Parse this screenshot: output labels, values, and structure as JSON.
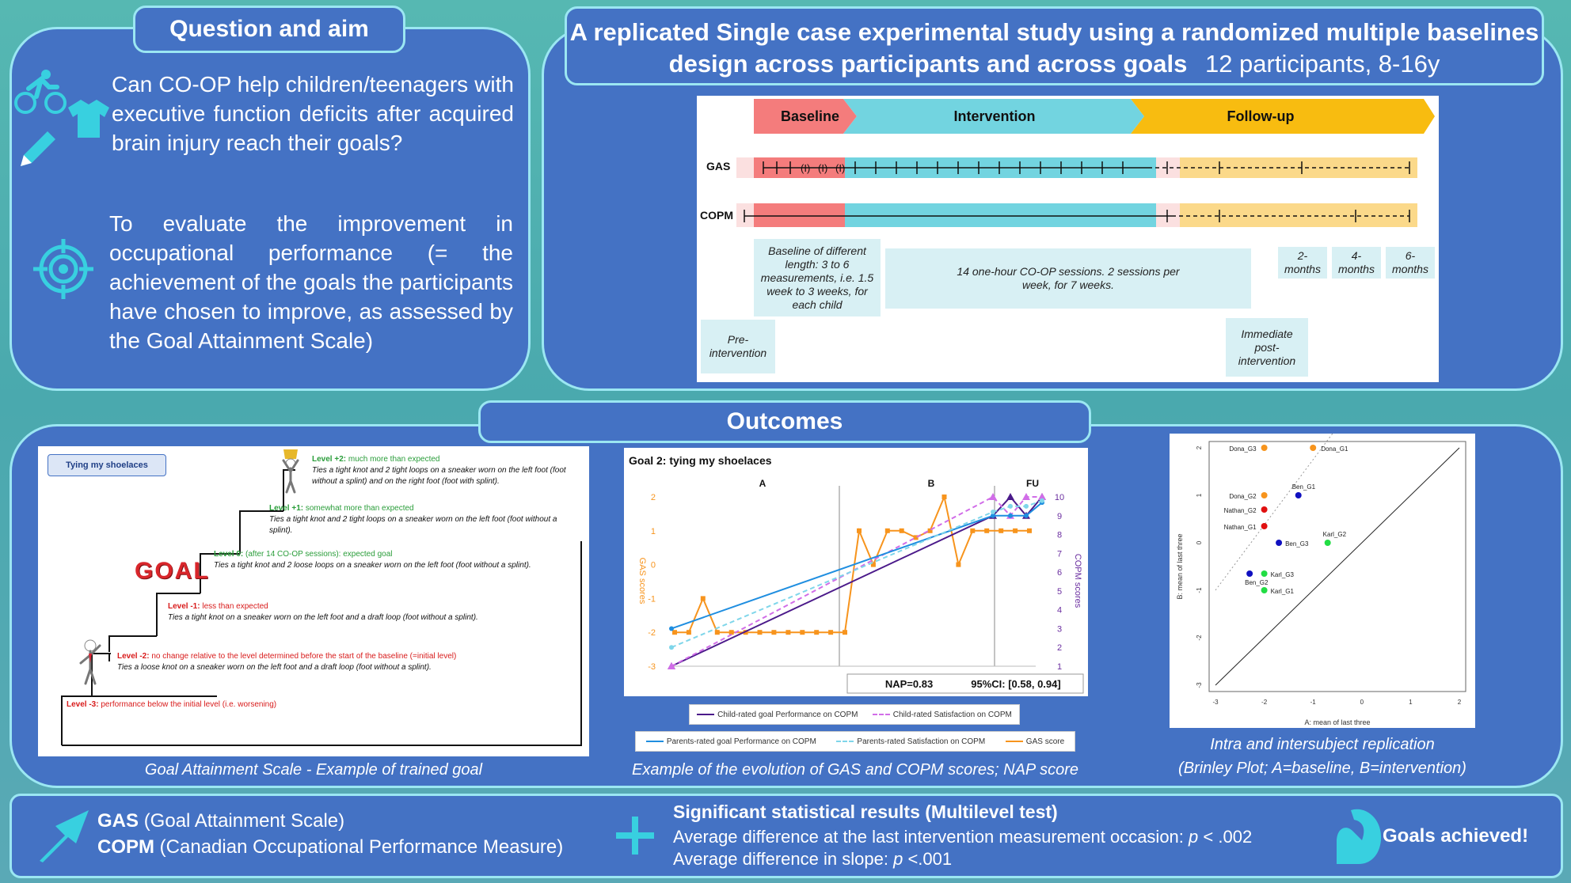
{
  "question_panel": {
    "header": "Question and aim",
    "question": "Can CO-OP help children/teenagers with executive function deficits after acquired brain injury reach their goals?",
    "aim": "To evaluate the improvement in occupational performance (= the achievement of the goals the participants have chosen to improve, as assessed by the Goal Attainment Scale)"
  },
  "study_panel": {
    "title_line1": "A replicated Single case experimental study using a randomized multiple baselines",
    "title_line2_bold": "design across participants and across goals",
    "title_line2_extra": "12 participants, 8-16y",
    "phases": [
      "Baseline",
      "Intervention",
      "Follow-up"
    ],
    "row_labels": [
      "GAS",
      "COPM"
    ],
    "gas_marks": [
      "(I)",
      "(I)",
      "(I)"
    ],
    "notes": {
      "pre": "Pre-intervention",
      "baseline": "Baseline of different length: 3 to 6 measurements, i.e. 1.5 week to 3 weeks, for each child",
      "sessions": "14 one-hour CO-OP sessions. 2 sessions per week, for 7 weeks.",
      "post": "Immediate post-intervention",
      "fu": [
        "2-months",
        "4-months",
        "6-months"
      ]
    }
  },
  "outcomes": {
    "header": "Outcomes",
    "gas_example": {
      "tag": "Tying my shoelaces",
      "goal_word": "GOAL",
      "levels": [
        {
          "level": "Level +2:",
          "head": "much more than expected",
          "body": "Ties a tight knot and 2 tight loops on a sneaker worn on the left foot (foot without a splint) and on the right foot (foot with splint)."
        },
        {
          "level": "Level +1:",
          "head": "somewhat more than expected",
          "body": "Ties a tight knot and 2 tight loops on a sneaker worn on the left foot (foot without a splint)."
        },
        {
          "level": "Level 0:",
          "head": "(after 14 CO-OP sessions): expected goal",
          "body": "Ties a tight knot and 2 loose loops on a sneaker worn on the left foot (foot without a splint)."
        },
        {
          "level": "Level -1:",
          "head": "less than expected",
          "body": "Ties a tight knot on a sneaker worn on the left foot and a draft loop (foot without a splint)."
        },
        {
          "level": "Level -2:",
          "head": "no change relative to the level determined before the start of the baseline (=initial level)",
          "body": "Ties a loose knot on a sneaker worn on the left foot and a draft loop (foot without a splint)."
        },
        {
          "level": "Level -3:",
          "head": "performance below the initial level (i.e. worsening)",
          "body": ""
        }
      ],
      "caption": "Goal Attainment Scale - Example of trained goal"
    },
    "line_caption": "Example of the evolution of GAS and COPM scores; NAP score",
    "brinley_caption_1": "Intra and intersubject replication",
    "brinley_caption_2": "(Brinley Plot; A=baseline, B=intervention)"
  },
  "chart_data": [
    {
      "type": "line",
      "title": "Goal 2: tying my shoelaces",
      "phases": [
        "A",
        "B",
        "FU"
      ],
      "ylabel_left": "GAS scores",
      "ylabel_right": "COPM scores",
      "ylim_left": [
        -3,
        2
      ],
      "ylim_right": [
        1,
        10
      ],
      "yticks_left": [
        "2",
        "1",
        "0",
        "-1",
        "-2",
        "-3"
      ],
      "yticks_right": [
        "10",
        "9",
        "8",
        "7",
        "6",
        "5",
        "4",
        "3",
        "2",
        "1"
      ],
      "nap_text": "NAP=0.83",
      "ci_text": "95%CI: [0.58, 0.94]",
      "series": [
        {
          "name": "GAS score",
          "color": "#f7941d",
          "values": [
            -2,
            -2,
            -1,
            -2,
            -2,
            -2,
            -2,
            -2,
            -2,
            -2,
            -2,
            -2,
            -2,
            1,
            0,
            1,
            1,
            0.8,
            1,
            2,
            0,
            1,
            1,
            1,
            1,
            1
          ]
        },
        {
          "name": "Child-rated goal Performance on COPM",
          "color": "#4b1a8a",
          "values": [
            1,
            9,
            10,
            9,
            10
          ]
        },
        {
          "name": "Child-rated Satisfaction on COPM",
          "color": "#d16de8",
          "values": [
            1,
            10,
            9,
            10,
            10
          ]
        },
        {
          "name": "Parents-rated goal Performance on COPM",
          "color": "#1f8ee0",
          "values": [
            3,
            9,
            9,
            9,
            9.7
          ]
        },
        {
          "name": "Parents-rated Satisfaction on COPM",
          "color": "#7fd6ea",
          "values": [
            2,
            9.2,
            9.5,
            9.5,
            9.8
          ]
        }
      ]
    },
    {
      "type": "scatter",
      "xlabel": "A: mean of last three",
      "ylabel": "B: mean of last three",
      "xlim": [
        -3,
        2
      ],
      "ylim": [
        -3,
        2
      ],
      "ticks": [
        "-3",
        "-2",
        "-1",
        "0",
        "1",
        "2"
      ],
      "points": [
        {
          "label": "Dona_G3",
          "x": -2.0,
          "y": 2.0,
          "color": "#f7941d"
        },
        {
          "label": "Dona_G1",
          "x": -1.0,
          "y": 2.0,
          "color": "#f7941d"
        },
        {
          "label": "Ben_G1",
          "x": -1.3,
          "y": 1.0,
          "color": "#1010c0"
        },
        {
          "label": "Dona_G2",
          "x": -2.0,
          "y": 1.0,
          "color": "#f7941d"
        },
        {
          "label": "Nathan_G2",
          "x": -2.0,
          "y": 0.7,
          "color": "#e01010"
        },
        {
          "label": "Nathan_G1",
          "x": -2.0,
          "y": 0.35,
          "color": "#e01010"
        },
        {
          "label": "Karl_G2",
          "x": -0.7,
          "y": 0.0,
          "color": "#22dd44"
        },
        {
          "label": "Ben_G3",
          "x": -1.7,
          "y": 0.0,
          "color": "#1010c0"
        },
        {
          "label": "Ben_G2",
          "x": -2.3,
          "y": -0.65,
          "color": "#1010c0"
        },
        {
          "label": "Karl_G3",
          "x": -2.0,
          "y": -0.65,
          "color": "#22dd44"
        },
        {
          "label": "Karl_G1",
          "x": -2.0,
          "y": -1.0,
          "color": "#22dd44"
        }
      ]
    }
  ],
  "footer": {
    "gas_abbr": "GAS",
    "gas_full": "(Goal Attainment Scale)",
    "copm_abbr": "COPM",
    "copm_full": "(Canadian Occupational Performance Measure)",
    "stat_title": "Significant statistical results (Multilevel test)",
    "stat1_prefix": "Average difference at the last intervention measurement occasion:",
    "stat1_p": "p",
    "stat1_val": "< .002",
    "stat2_prefix": "Average difference in slope:",
    "stat2_p": "p",
    "stat2_val": "<.001",
    "goals": "Goals achieved!"
  },
  "icons": [
    "cyclist-icon",
    "tshirt-icon",
    "pencil-icon",
    "target-icon",
    "arrow-up-right-icon",
    "plus-icon",
    "flexed-arm-icon",
    "trophy-figure-icon",
    "waving-figure-icon",
    "goal-target-icon"
  ],
  "colors": {
    "panel": "#4472c4",
    "border": "#9be7f2",
    "cyan": "#38d0e0",
    "baseline": "#f47c7c",
    "intervention": "#72d4e0",
    "followup": "#f8bc10"
  }
}
